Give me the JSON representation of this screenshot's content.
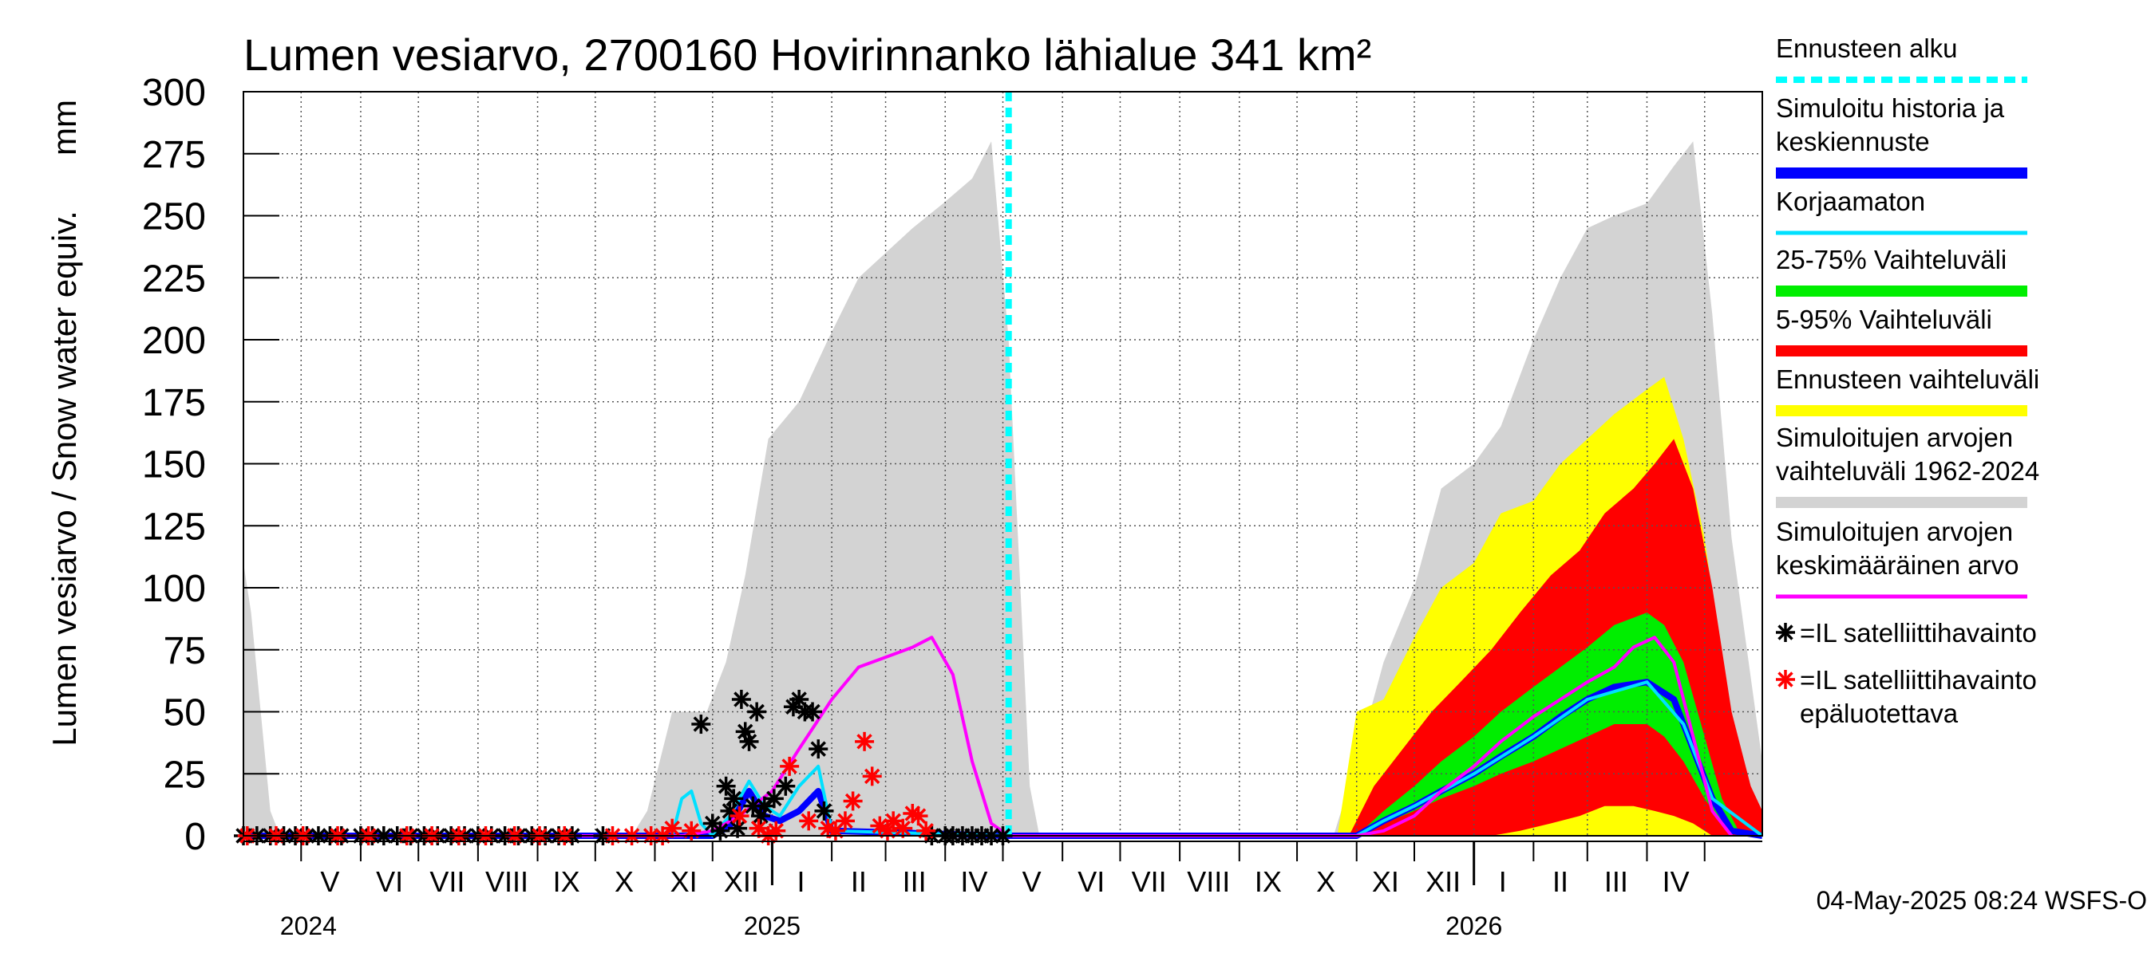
{
  "chart_data": {
    "type": "area",
    "title": "Lumen vesiarvo, 2700160 Hovirinnanko lähialue 341 km²",
    "ylabel": "Lumen vesiarvo / Snow water equiv.",
    "yunit": "mm",
    "ylim": [
      0,
      300
    ],
    "yticks": [
      "0",
      "25",
      "50",
      "75",
      "100",
      "125",
      "150",
      "175",
      "200",
      "225",
      "250",
      "275",
      "300"
    ],
    "xlim": [
      "2024-04-01",
      "2026-05-31"
    ],
    "grid": true,
    "legend_position": "right",
    "months": [
      {
        "label": "V",
        "date": "2024-05-16"
      },
      {
        "label": "VI",
        "date": "2024-06-16"
      },
      {
        "label": "VII",
        "date": "2024-07-16"
      },
      {
        "label": "VIII",
        "date": "2024-08-16"
      },
      {
        "label": "IX",
        "date": "2024-09-16"
      },
      {
        "label": "X",
        "date": "2024-10-16"
      },
      {
        "label": "XI",
        "date": "2024-11-16"
      },
      {
        "label": "XII",
        "date": "2024-12-16"
      },
      {
        "label": "I",
        "date": "2025-01-16"
      },
      {
        "label": "II",
        "date": "2025-02-15"
      },
      {
        "label": "III",
        "date": "2025-03-16"
      },
      {
        "label": "IV",
        "date": "2025-04-16"
      },
      {
        "label": "V",
        "date": "2025-05-16"
      },
      {
        "label": "VI",
        "date": "2025-06-16"
      },
      {
        "label": "VII",
        "date": "2025-07-16"
      },
      {
        "label": "VIII",
        "date": "2025-08-16"
      },
      {
        "label": "IX",
        "date": "2025-09-16"
      },
      {
        "label": "X",
        "date": "2025-10-16"
      },
      {
        "label": "XI",
        "date": "2025-11-16"
      },
      {
        "label": "XII",
        "date": "2025-12-16"
      },
      {
        "label": "I",
        "date": "2026-01-16"
      },
      {
        "label": "II",
        "date": "2026-02-15"
      },
      {
        "label": "III",
        "date": "2026-03-16"
      },
      {
        "label": "IV",
        "date": "2026-04-16"
      }
    ],
    "years": [
      {
        "label": "2024",
        "date": "2024-04-20"
      },
      {
        "label": "2025",
        "date": "2025-01-01"
      },
      {
        "label": "2026",
        "date": "2026-01-01"
      }
    ],
    "forecast_start": "2025-05-04",
    "series": [
      {
        "name": "Simuloitujen arvojen vaihteluväli 1962-2024",
        "kind": "band",
        "color": "#d3d3d3",
        "x": [
          "2024-04-01",
          "2024-04-05",
          "2024-04-15",
          "2024-04-20",
          "2024-10-20",
          "2024-10-28",
          "2024-11-10",
          "2024-11-28",
          "2024-12-08",
          "2024-12-18",
          "2024-12-30",
          "2025-01-15",
          "2025-01-30",
          "2025-02-15",
          "2025-03-01",
          "2025-03-15",
          "2025-03-31",
          "2025-04-15",
          "2025-04-25",
          "2025-05-04",
          "2025-05-15",
          "2025-05-20",
          "2025-10-20",
          "2025-11-01",
          "2025-11-15",
          "2025-12-01",
          "2025-12-15",
          "2026-01-01",
          "2026-01-15",
          "2026-02-01",
          "2026-02-15",
          "2026-03-01",
          "2026-03-15",
          "2026-04-01",
          "2026-04-15",
          "2026-04-25",
          "2026-05-05",
          "2026-05-15",
          "2026-05-31"
        ],
        "lower": [
          0,
          0,
          0,
          0,
          0,
          0,
          0,
          0,
          0,
          0,
          0,
          0,
          0,
          0,
          0,
          0,
          0,
          0,
          0,
          0,
          0,
          0,
          0,
          0,
          0,
          0,
          0,
          0,
          0,
          0,
          0,
          0,
          0,
          0,
          0,
          0,
          0,
          0,
          0
        ],
        "upper": [
          110,
          90,
          10,
          0,
          0,
          10,
          50,
          50,
          70,
          105,
          160,
          175,
          200,
          225,
          235,
          245,
          255,
          265,
          280,
          200,
          20,
          0,
          0,
          30,
          70,
          100,
          140,
          150,
          165,
          200,
          225,
          245,
          250,
          255,
          270,
          280,
          210,
          120,
          30
        ]
      },
      {
        "name": "Ennusteen vaihteluväli",
        "kind": "band",
        "color": "#ffff00",
        "x": [
          "2025-10-22",
          "2025-11-01",
          "2025-11-15",
          "2025-12-01",
          "2025-12-15",
          "2026-01-01",
          "2026-01-15",
          "2026-02-01",
          "2026-02-15",
          "2026-03-01",
          "2026-03-15",
          "2026-04-01",
          "2026-04-10",
          "2026-04-20",
          "2026-05-01",
          "2026-05-10",
          "2026-05-20",
          "2026-05-31"
        ],
        "lower": [
          0,
          0,
          0,
          0,
          0,
          0,
          0,
          0,
          0,
          0,
          0,
          0,
          0,
          0,
          0,
          0,
          0,
          0
        ],
        "upper": [
          0,
          50,
          55,
          80,
          100,
          110,
          130,
          135,
          150,
          160,
          170,
          180,
          185,
          160,
          120,
          70,
          20,
          5
        ]
      },
      {
        "name": "5-95% Vaihteluväli",
        "kind": "band",
        "color": "#ff0000",
        "x": [
          "2025-10-28",
          "2025-11-10",
          "2025-11-25",
          "2025-12-10",
          "2025-12-25",
          "2026-01-10",
          "2026-01-25",
          "2026-02-10",
          "2026-02-25",
          "2026-03-10",
          "2026-03-25",
          "2026-04-05",
          "2026-04-15",
          "2026-04-25",
          "2026-05-05",
          "2026-05-15",
          "2026-05-25",
          "2026-05-31"
        ],
        "lower": [
          0,
          0,
          0,
          0,
          0,
          0,
          2,
          5,
          8,
          12,
          12,
          10,
          8,
          5,
          0,
          0,
          0,
          0
        ],
        "upper": [
          0,
          20,
          35,
          50,
          62,
          75,
          90,
          105,
          115,
          130,
          140,
          150,
          160,
          140,
          100,
          50,
          20,
          10
        ]
      },
      {
        "name": "25-75% Vaihteluväli",
        "kind": "band",
        "color": "#00ee00",
        "x": [
          "2025-11-01",
          "2025-11-15",
          "2025-12-01",
          "2025-12-15",
          "2026-01-01",
          "2026-01-15",
          "2026-02-01",
          "2026-02-15",
          "2026-03-01",
          "2026-03-15",
          "2026-04-01",
          "2026-04-10",
          "2026-04-20",
          "2026-05-01",
          "2026-05-10",
          "2026-05-20"
        ],
        "lower": [
          0,
          5,
          10,
          15,
          20,
          25,
          30,
          35,
          40,
          45,
          45,
          40,
          30,
          15,
          5,
          0
        ],
        "upper": [
          0,
          10,
          20,
          30,
          40,
          50,
          60,
          68,
          76,
          85,
          90,
          85,
          70,
          40,
          15,
          0
        ]
      },
      {
        "name": "Simuloitu historia ja keskiennuste",
        "kind": "line",
        "color": "#0000ff",
        "x": [
          "2024-04-01",
          "2024-12-01",
          "2024-12-10",
          "2024-12-20",
          "2024-12-28",
          "2025-01-05",
          "2025-01-15",
          "2025-01-25",
          "2025-02-01",
          "2025-05-04",
          "2025-11-01",
          "2025-11-15",
          "2025-12-01",
          "2025-12-15",
          "2026-01-01",
          "2026-01-15",
          "2026-02-01",
          "2026-02-15",
          "2026-03-01",
          "2026-03-15",
          "2026-04-01",
          "2026-04-15",
          "2026-04-25",
          "2026-05-05",
          "2026-05-15",
          "2026-05-31"
        ],
        "values": [
          0,
          0,
          4,
          18,
          8,
          6,
          10,
          18,
          2,
          0,
          0,
          6,
          12,
          18,
          25,
          32,
          40,
          48,
          55,
          60,
          62,
          55,
          35,
          15,
          2,
          0
        ]
      },
      {
        "name": "Korjaamaton",
        "kind": "line",
        "color": "#00e0ff",
        "x": [
          "2024-04-01",
          "2024-11-10",
          "2024-11-15",
          "2024-11-20",
          "2024-11-25",
          "2024-12-01",
          "2024-12-10",
          "2024-12-20",
          "2024-12-28",
          "2025-01-05",
          "2025-01-15",
          "2025-01-25",
          "2025-02-01",
          "2025-05-04",
          "2025-11-01",
          "2025-11-15",
          "2025-12-01",
          "2026-01-01",
          "2026-02-01",
          "2026-03-01",
          "2026-04-01",
          "2026-04-20",
          "2026-05-05",
          "2026-05-31"
        ],
        "values": [
          0,
          0,
          15,
          18,
          5,
          0,
          8,
          22,
          12,
          8,
          20,
          28,
          2,
          0,
          0,
          6,
          12,
          25,
          40,
          55,
          62,
          45,
          15,
          0
        ]
      },
      {
        "name": "Simuloitujen arvojen keskimääräinen arvo",
        "kind": "line",
        "color": "#ff00ff",
        "x": [
          "2024-04-01",
          "2024-04-03",
          "2024-04-15",
          "2024-11-15",
          "2024-12-01",
          "2024-12-15",
          "2025-01-01",
          "2025-01-15",
          "2025-02-01",
          "2025-02-15",
          "2025-03-01",
          "2025-03-15",
          "2025-03-25",
          "2025-04-05",
          "2025-04-15",
          "2025-04-25",
          "2025-05-04",
          "2025-11-01",
          "2025-11-15",
          "2025-12-01",
          "2025-12-15",
          "2026-01-01",
          "2026-01-15",
          "2026-02-01",
          "2026-02-15",
          "2026-03-01",
          "2026-03-15",
          "2026-03-25",
          "2026-04-05",
          "2026-04-15",
          "2026-04-25",
          "2026-05-05",
          "2026-05-15"
        ],
        "values": [
          0,
          0,
          0,
          0,
          2,
          8,
          18,
          35,
          55,
          68,
          72,
          76,
          80,
          65,
          30,
          5,
          0,
          0,
          2,
          8,
          18,
          28,
          38,
          48,
          55,
          62,
          68,
          76,
          80,
          70,
          40,
          10,
          0
        ]
      },
      {
        "name": "=IL satelliittihavainto",
        "kind": "points",
        "color": "#000000",
        "x": [
          "2024-04-01",
          "2024-04-08",
          "2024-04-15",
          "2024-04-22",
          "2024-04-28",
          "2024-05-04",
          "2024-05-10",
          "2024-05-16",
          "2024-05-22",
          "2024-06-01",
          "2024-06-07",
          "2024-06-13",
          "2024-06-20",
          "2024-06-27",
          "2024-07-04",
          "2024-07-11",
          "2024-07-18",
          "2024-07-25",
          "2024-08-01",
          "2024-08-08",
          "2024-08-15",
          "2024-08-22",
          "2024-08-29",
          "2024-09-05",
          "2024-09-12",
          "2024-09-19",
          "2024-10-05",
          "2024-11-25",
          "2024-12-01",
          "2024-12-05",
          "2024-12-08",
          "2024-12-10",
          "2024-12-12",
          "2024-12-14",
          "2024-12-16",
          "2024-12-18",
          "2024-12-20",
          "2024-12-22",
          "2024-12-24",
          "2024-12-26",
          "2024-12-28",
          "2025-01-02",
          "2025-01-08",
          "2025-01-12",
          "2025-01-15",
          "2025-01-18",
          "2025-01-22",
          "2025-01-25",
          "2025-01-28",
          "2025-03-25",
          "2025-04-01",
          "2025-04-05",
          "2025-04-10",
          "2025-04-15",
          "2025-04-20",
          "2025-04-25",
          "2025-05-01"
        ],
        "values": [
          0,
          0,
          0,
          0,
          0,
          0,
          0,
          0,
          0,
          0,
          0,
          0,
          0,
          0,
          0,
          0,
          0,
          0,
          0,
          0,
          0,
          0,
          0,
          0,
          0,
          0,
          0,
          45,
          5,
          2,
          20,
          10,
          15,
          3,
          55,
          42,
          38,
          12,
          50,
          8,
          12,
          15,
          20,
          52,
          55,
          50,
          50,
          35,
          10,
          0,
          0,
          0,
          0,
          0,
          0,
          0,
          0
        ]
      },
      {
        "name": "=IL satelliittihavainto epäluotettava",
        "kind": "points",
        "color": "#ff0000",
        "x": [
          "2024-04-03",
          "2024-04-18",
          "2024-05-02",
          "2024-05-20",
          "2024-06-05",
          "2024-06-25",
          "2024-07-08",
          "2024-07-22",
          "2024-08-05",
          "2024-08-20",
          "2024-09-02",
          "2024-09-15",
          "2024-10-10",
          "2024-10-20",
          "2024-10-30",
          "2024-11-05",
          "2024-11-10",
          "2024-11-20",
          "2024-12-15",
          "2024-12-25",
          "2024-12-30",
          "2025-01-03",
          "2025-01-10",
          "2025-01-20",
          "2025-01-30",
          "2025-02-03",
          "2025-02-08",
          "2025-02-12",
          "2025-02-18",
          "2025-02-22",
          "2025-02-26",
          "2025-03-02",
          "2025-03-05",
          "2025-03-10",
          "2025-03-15",
          "2025-03-18",
          "2025-03-22"
        ],
        "values": [
          0,
          0,
          0,
          0,
          0,
          0,
          0,
          0,
          0,
          0,
          0,
          0,
          0,
          0,
          0,
          0,
          3,
          2,
          8,
          3,
          0,
          2,
          28,
          6,
          3,
          2,
          6,
          14,
          38,
          24,
          4,
          2,
          6,
          3,
          9,
          8,
          2
        ]
      }
    ],
    "legend": [
      {
        "label": "Ennusteen alku",
        "color": "#00ffff",
        "style": "dashed"
      },
      {
        "label": "Simuloitu historia ja keskiennuste",
        "color": "#0000ff",
        "style": "thick"
      },
      {
        "label": "Korjaamaton",
        "color": "#00e0ff",
        "style": "line"
      },
      {
        "label": "25-75% Vaihteluväli",
        "color": "#00ee00",
        "style": "thick"
      },
      {
        "label": "5-95% Vaihteluväli",
        "color": "#ff0000",
        "style": "thick"
      },
      {
        "label": "Ennusteen vaihteluväli",
        "color": "#ffff00",
        "style": "thick"
      },
      {
        "label": "Simuloitujen arvojen vaihteluväli 1962-2024",
        "color": "#d3d3d3",
        "style": "thick"
      },
      {
        "label": "Simuloitujen arvojen keskimääräinen arvo",
        "color": "#ff00ff",
        "style": "line"
      },
      {
        "label": "=IL satelliittihavainto",
        "color": "#000000",
        "style": "marker"
      },
      {
        "label": "=IL satelliittihavainto epäluotettava",
        "color": "#ff0000",
        "style": "marker"
      }
    ],
    "footer": "04-May-2025 08:24 WSFS-O"
  }
}
